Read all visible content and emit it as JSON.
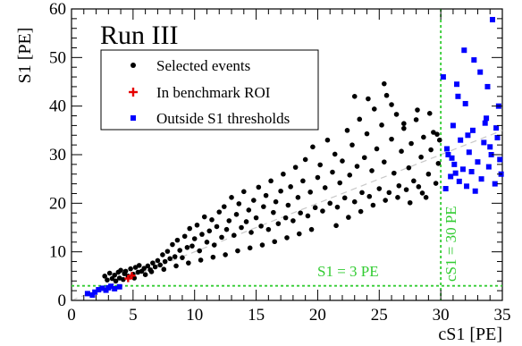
{
  "chart_data": {
    "type": "scatter",
    "title": "Run III",
    "xlabel": "cS1 [PE]",
    "ylabel": "S1 [PE]",
    "xlim": [
      0,
      35
    ],
    "ylim": [
      0,
      60
    ],
    "x_ticks": [
      0,
      5,
      10,
      15,
      20,
      25,
      30,
      35
    ],
    "y_ticks": [
      0,
      10,
      20,
      30,
      40,
      50,
      60
    ],
    "grid": false,
    "legend_position": "top-left",
    "colors": {
      "selected": "#000000",
      "roi": "#e60000",
      "outside": "#0000ff",
      "threshold": "#33cc33",
      "trend": "#c8c8c8"
    },
    "annotations": {
      "s1_threshold": {
        "label": "S1 = 3 PE",
        "value": 3
      },
      "cs1_threshold": {
        "label": "cS1 = 30 PE",
        "value": 30
      }
    },
    "series": [
      {
        "name": "Selected events",
        "marker": "dot",
        "points": [
          [
            2.7,
            5.0
          ],
          [
            2.9,
            4.2
          ],
          [
            3.1,
            5.6
          ],
          [
            3.3,
            4.5
          ],
          [
            3.5,
            5.2
          ],
          [
            3.6,
            4.0
          ],
          [
            3.8,
            5.8
          ],
          [
            3.9,
            4.6
          ],
          [
            4.0,
            6.2
          ],
          [
            4.2,
            4.3
          ],
          [
            4.3,
            5.5
          ],
          [
            4.4,
            6.0
          ],
          [
            4.6,
            5.0
          ],
          [
            4.8,
            6.5
          ],
          [
            5.0,
            5.4
          ],
          [
            5.1,
            4.6
          ],
          [
            5.2,
            6.8
          ],
          [
            5.4,
            5.8
          ],
          [
            5.5,
            7.2
          ],
          [
            5.7,
            6.0
          ],
          [
            5.9,
            6.6
          ],
          [
            6.0,
            5.3
          ],
          [
            6.2,
            7.1
          ],
          [
            6.4,
            6.3
          ],
          [
            6.6,
            7.7
          ],
          [
            6.8,
            6.9
          ],
          [
            7.0,
            8.2
          ],
          [
            7.2,
            7.3
          ],
          [
            7.4,
            9.4
          ],
          [
            7.6,
            8.0
          ],
          [
            7.8,
            10.1
          ],
          [
            8.0,
            8.6
          ],
          [
            8.2,
            11.5
          ],
          [
            8.4,
            9.0
          ],
          [
            8.6,
            12.4
          ],
          [
            8.8,
            10.3
          ],
          [
            9.0,
            8.8
          ],
          [
            9.2,
            13.2
          ],
          [
            9.4,
            10.9
          ],
          [
            9.6,
            14.8
          ],
          [
            9.8,
            11.2
          ],
          [
            10.0,
            12.7
          ],
          [
            10.2,
            15.5
          ],
          [
            10.4,
            10.2
          ],
          [
            10.6,
            13.6
          ],
          [
            10.8,
            17.2
          ],
          [
            11.0,
            12.0
          ],
          [
            11.2,
            14.3
          ],
          [
            11.4,
            16.6
          ],
          [
            11.6,
            11.4
          ],
          [
            11.8,
            15.2
          ],
          [
            12.0,
            18.2
          ],
          [
            12.2,
            13.0
          ],
          [
            12.4,
            19.3
          ],
          [
            12.6,
            14.6
          ],
          [
            12.8,
            16.4
          ],
          [
            13.0,
            21.2
          ],
          [
            13.2,
            13.4
          ],
          [
            13.4,
            17.7
          ],
          [
            13.6,
            19.9
          ],
          [
            13.8,
            15.0
          ],
          [
            14.0,
            22.4
          ],
          [
            14.2,
            16.2
          ],
          [
            14.4,
            18.6
          ],
          [
            14.6,
            14.0
          ],
          [
            14.8,
            20.6
          ],
          [
            15.0,
            17.0
          ],
          [
            15.2,
            23.3
          ],
          [
            15.4,
            15.3
          ],
          [
            15.6,
            19.3
          ],
          [
            15.8,
            21.6
          ],
          [
            16.0,
            14.6
          ],
          [
            16.2,
            24.6
          ],
          [
            16.4,
            18.1
          ],
          [
            16.6,
            20.3
          ],
          [
            16.8,
            15.8
          ],
          [
            17.0,
            22.5
          ],
          [
            17.2,
            26.0
          ],
          [
            17.4,
            17.0
          ],
          [
            17.6,
            19.6
          ],
          [
            17.8,
            23.4
          ],
          [
            18.0,
            16.4
          ],
          [
            18.2,
            27.4
          ],
          [
            18.4,
            21.2
          ],
          [
            18.6,
            18.0
          ],
          [
            18.8,
            24.6
          ],
          [
            19.0,
            29.0
          ],
          [
            19.2,
            17.4
          ],
          [
            19.4,
            22.3
          ],
          [
            19.6,
            31.6
          ],
          [
            19.8,
            19.1
          ],
          [
            20.0,
            25.3
          ],
          [
            20.2,
            27.9
          ],
          [
            20.4,
            18.4
          ],
          [
            20.6,
            23.2
          ],
          [
            20.8,
            33.0
          ],
          [
            21.0,
            20.0
          ],
          [
            21.2,
            26.4
          ],
          [
            21.4,
            30.1
          ],
          [
            21.6,
            19.2
          ],
          [
            21.8,
            24.2
          ],
          [
            22.0,
            28.7
          ],
          [
            22.2,
            21.1
          ],
          [
            22.4,
            35.0
          ],
          [
            22.6,
            25.8
          ],
          [
            22.8,
            32.0
          ],
          [
            23.0,
            20.3
          ],
          [
            23.2,
            27.6
          ],
          [
            23.4,
            37.3
          ],
          [
            23.6,
            22.2
          ],
          [
            23.8,
            29.4
          ],
          [
            24.0,
            34.3
          ],
          [
            24.2,
            21.4
          ],
          [
            24.4,
            26.7
          ],
          [
            24.6,
            39.4
          ],
          [
            24.8,
            31.2
          ],
          [
            25.0,
            23.0
          ],
          [
            25.2,
            36.1
          ],
          [
            25.4,
            28.5
          ],
          [
            25.6,
            42.2
          ],
          [
            25.8,
            22.2
          ],
          [
            26.0,
            33.2
          ],
          [
            26.2,
            26.2
          ],
          [
            26.4,
            38.3
          ],
          [
            26.6,
            23.6
          ],
          [
            26.8,
            30.7
          ],
          [
            27.0,
            35.4
          ],
          [
            27.2,
            22.8
          ],
          [
            27.4,
            27.3
          ],
          [
            27.6,
            32.3
          ],
          [
            27.8,
            24.6
          ],
          [
            28.0,
            37.2
          ],
          [
            28.2,
            23.4
          ],
          [
            28.4,
            29.5
          ],
          [
            28.6,
            33.6
          ],
          [
            28.8,
            21.2
          ],
          [
            29.0,
            26.0
          ],
          [
            29.2,
            31.0
          ],
          [
            29.4,
            34.6
          ],
          [
            29.6,
            24.1
          ],
          [
            29.8,
            28.2
          ],
          [
            29.9,
            33.0
          ],
          [
            21.5,
            15.4
          ],
          [
            22.5,
            17.1
          ],
          [
            23.5,
            18.3
          ],
          [
            24.5,
            19.6
          ],
          [
            25.5,
            20.6
          ],
          [
            26.5,
            21.2
          ],
          [
            27.5,
            20.1
          ],
          [
            28.5,
            22.1
          ],
          [
            19.5,
            14.6
          ],
          [
            18.5,
            13.7
          ],
          [
            17.5,
            12.9
          ],
          [
            16.5,
            12.1
          ],
          [
            15.5,
            11.4
          ],
          [
            14.5,
            10.8
          ],
          [
            13.5,
            10.2
          ],
          [
            12.5,
            9.4
          ],
          [
            11.5,
            8.9
          ],
          [
            10.5,
            8.3
          ],
          [
            9.5,
            7.7
          ],
          [
            8.5,
            7.1
          ],
          [
            7.5,
            6.4
          ],
          [
            6.5,
            5.9
          ],
          [
            23.0,
            42.0
          ],
          [
            24.1,
            41.5
          ],
          [
            25.4,
            44.6
          ],
          [
            26.0,
            40.3
          ],
          [
            27.0,
            36.4
          ],
          [
            28.1,
            39.2
          ],
          [
            29.1,
            38.5
          ],
          [
            29.7,
            34.2
          ]
        ]
      },
      {
        "name": "In benchmark ROI",
        "marker": "cross",
        "points": [
          [
            4.6,
            4.5
          ],
          [
            4.9,
            5.1
          ]
        ]
      },
      {
        "name": "Outside S1 thresholds",
        "marker": "square",
        "points": [
          [
            1.3,
            1.4
          ],
          [
            1.7,
            1.1
          ],
          [
            1.9,
            1.7
          ],
          [
            2.2,
            2.2
          ],
          [
            2.5,
            2.5
          ],
          [
            2.8,
            2.1
          ],
          [
            3.0,
            2.6
          ],
          [
            3.2,
            2.9
          ],
          [
            3.5,
            2.4
          ],
          [
            3.9,
            2.8
          ],
          [
            30.2,
            46.0
          ],
          [
            30.4,
            23.0
          ],
          [
            30.6,
            30.0
          ],
          [
            30.8,
            25.5
          ],
          [
            31.0,
            36.0
          ],
          [
            31.1,
            28.0
          ],
          [
            31.3,
            44.5
          ],
          [
            31.5,
            24.5
          ],
          [
            31.6,
            33.0
          ],
          [
            31.8,
            27.0
          ],
          [
            32.0,
            40.5
          ],
          [
            32.1,
            23.5
          ],
          [
            32.3,
            30.5
          ],
          [
            32.5,
            26.5
          ],
          [
            32.6,
            35.0
          ],
          [
            32.8,
            22.5
          ],
          [
            33.0,
            28.5
          ],
          [
            33.2,
            47.0
          ],
          [
            33.3,
            25.0
          ],
          [
            33.5,
            32.5
          ],
          [
            33.7,
            37.5
          ],
          [
            33.9,
            27.5
          ],
          [
            34.1,
            30.0
          ],
          [
            34.2,
            57.8
          ],
          [
            34.4,
            24.0
          ],
          [
            34.6,
            33.5
          ],
          [
            34.7,
            40.0
          ],
          [
            34.8,
            29.0
          ],
          [
            34.9,
            26.0
          ],
          [
            31.9,
            51.5
          ],
          [
            32.7,
            49.5
          ],
          [
            33.6,
            36.5
          ],
          [
            30.5,
            31.2
          ],
          [
            31.4,
            42.0
          ],
          [
            34.5,
            35.5
          ],
          [
            30.9,
            29.3
          ],
          [
            32.2,
            34.0
          ],
          [
            33.8,
            44.0
          ],
          [
            34.0,
            31.6
          ],
          [
            31.2,
            26.2
          ]
        ]
      }
    ]
  }
}
